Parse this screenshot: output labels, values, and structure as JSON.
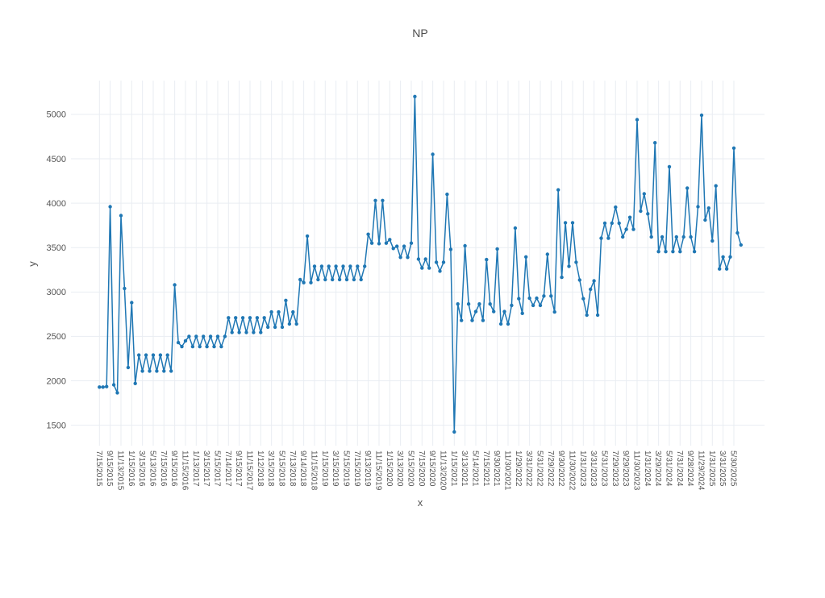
{
  "title": "NP",
  "chart_data": {
    "type": "line",
    "title": "NP",
    "xlabel": "x",
    "ylabel": "y",
    "legend": "none",
    "grid": true,
    "line_color": "#1f77b4",
    "marker_color": "#1f77b4",
    "grid_color": "#e9edf2",
    "text_color": "#555555",
    "ylim": [
      1270,
      5380
    ],
    "yticks": [
      1500,
      2000,
      2500,
      3000,
      3500,
      4000,
      4500,
      5000
    ],
    "tick_every": 3,
    "x_tick_labels": [
      "7/15/2015",
      "9/15/2015",
      "11/13/2015",
      "1/15/2016",
      "3/15/2016",
      "5/13/2016",
      "7/15/2016",
      "9/15/2016",
      "11/15/2016",
      "1/13/2017",
      "3/15/2017",
      "5/15/2017",
      "7/14/2017",
      "9/15/2017",
      "11/15/2017",
      "1/12/2018",
      "3/15/2018",
      "5/15/2018",
      "7/13/2018",
      "9/14/2018",
      "11/15/2018",
      "1/15/2019",
      "3/15/2019",
      "5/15/2019",
      "7/15/2019",
      "9/13/2019",
      "11/15/2019",
      "1/15/2020",
      "3/13/2020",
      "5/15/2020",
      "7/15/2020",
      "9/15/2020",
      "11/13/2020",
      "1/15/2021",
      "3/13/2021",
      "5/14/2021",
      "7/15/2021",
      "9/30/2021",
      "11/30/2021",
      "1/29/2022",
      "3/31/2022",
      "5/31/2022",
      "7/29/2022",
      "9/30/2022",
      "11/30/2022",
      "1/31/2023",
      "3/31/2023",
      "5/31/2023",
      "7/29/2023",
      "9/29/2023",
      "11/30/2023",
      "1/31/2024",
      "3/29/2024",
      "5/31/2024",
      "7/31/2024",
      "9/28/2024",
      "11/29/2024",
      "1/31/2025",
      "3/31/2025",
      "5/30/2025"
    ],
    "values": [
      1930,
      1930,
      1935,
      3960,
      1955,
      1865,
      3860,
      3040,
      2150,
      2880,
      1970,
      2290,
      2110,
      2290,
      2110,
      2290,
      2110,
      2290,
      2110,
      2290,
      2110,
      3080,
      2430,
      2385,
      2450,
      2500,
      2385,
      2500,
      2385,
      2500,
      2385,
      2500,
      2385,
      2500,
      2385,
      2500,
      2710,
      2545,
      2710,
      2545,
      2710,
      2545,
      2710,
      2545,
      2710,
      2545,
      2710,
      2605,
      2775,
      2605,
      2775,
      2605,
      2905,
      2640,
      2775,
      2640,
      3140,
      3105,
      3630,
      3105,
      3290,
      3140,
      3290,
      3140,
      3290,
      3140,
      3290,
      3140,
      3290,
      3140,
      3290,
      3140,
      3290,
      3140,
      3290,
      3650,
      3550,
      4030,
      3545,
      4030,
      3550,
      3590,
      3490,
      3515,
      3390,
      3515,
      3390,
      3550,
      5200,
      3370,
      3270,
      3370,
      3270,
      4550,
      3335,
      3235,
      3335,
      4100,
      3480,
      1425,
      2865,
      2680,
      3520,
      2865,
      2680,
      2780,
      2865,
      2680,
      3365,
      2865,
      2780,
      3485,
      2640,
      2780,
      2640,
      2850,
      3720,
      2925,
      2760,
      3395,
      2930,
      2850,
      2930,
      2850,
      2955,
      3425,
      2955,
      2775,
      4150,
      3165,
      3780,
      3290,
      3780,
      3335,
      3135,
      2925,
      2740,
      3030,
      3125,
      2740,
      3605,
      3775,
      3605,
      3775,
      3955,
      3775,
      3620,
      3705,
      3840,
      3705,
      4940,
      3910,
      4105,
      3880,
      3620,
      4680,
      3455,
      3620,
      3455,
      4410,
      3455,
      3620,
      3455,
      3620,
      4170,
      3620,
      3455,
      3960,
      4990,
      3810,
      3945,
      3575,
      4195,
      3260,
      3395,
      3260,
      3395,
      4620,
      3665,
      3530
    ]
  }
}
